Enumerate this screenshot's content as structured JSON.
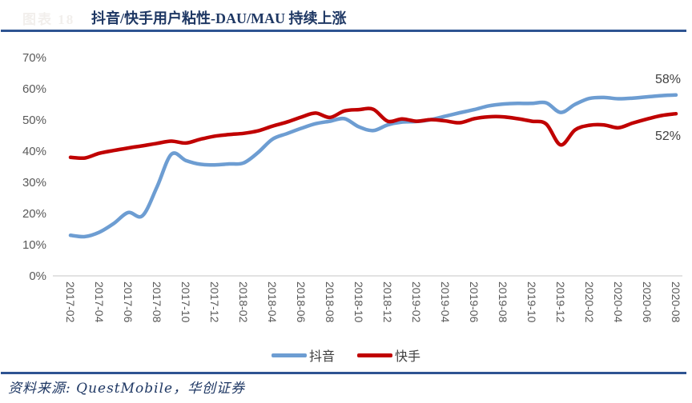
{
  "figure": {
    "tag": "图表 18",
    "title": "抖音/快手用户粘性-DAU/MAU 持续上涨",
    "source": "资料来源: QuestMobile，华创证券"
  },
  "colors": {
    "title_navy": "#1F3864",
    "rule_navy": "#2E5492",
    "figure_tag": "#F2EFEC",
    "axis_text": "#595959",
    "axis_line": "#D9D9D9",
    "data_label": "#404040",
    "legend_text": "#404040",
    "douyin_blue": "#6D9DD2",
    "kuaishou_red": "#C00000"
  },
  "chart_data": {
    "type": "line",
    "title": "抖音/快手用户粘性-DAU/MAU 持续上涨",
    "x": [
      "2017-02",
      "2017-03",
      "2017-04",
      "2017-05",
      "2017-06",
      "2017-07",
      "2017-08",
      "2017-09",
      "2017-10",
      "2017-11",
      "2017-12",
      "2018-01",
      "2018-02",
      "2018-03",
      "2018-04",
      "2018-05",
      "2018-06",
      "2018-07",
      "2018-08",
      "2018-09",
      "2018-10",
      "2018-11",
      "2018-12",
      "2019-01",
      "2019-02",
      "2019-03",
      "2019-04",
      "2019-05",
      "2019-06",
      "2019-07",
      "2019-08",
      "2019-09",
      "2019-10",
      "2019-11",
      "2019-12",
      "2020-01",
      "2020-02",
      "2020-03",
      "2020-04",
      "2020-05",
      "2020-06",
      "2020-07",
      "2020-08"
    ],
    "xtick_labels": [
      "2017-02",
      "2017-04",
      "2017-06",
      "2017-08",
      "2017-10",
      "2017-12",
      "2018-02",
      "2018-04",
      "2018-06",
      "2018-08",
      "2018-10",
      "2018-12",
      "2019-02",
      "2019-04",
      "2019-06",
      "2019-08",
      "2019-10",
      "2019-12",
      "2020-02",
      "2020-04",
      "2020-06",
      "2020-08"
    ],
    "series": [
      {
        "name": "抖音",
        "color": "#6D9DD2",
        "end_label": "58%",
        "values": [
          13,
          12.6,
          14,
          16.8,
          20.3,
          19.3,
          28.5,
          39,
          37,
          35.8,
          35.6,
          35.9,
          36.2,
          39.5,
          43.8,
          45.6,
          47.3,
          48.8,
          49.6,
          50.4,
          47.8,
          46.6,
          48.4,
          49.3,
          49.5,
          50.1,
          51.2,
          52.3,
          53.3,
          54.5,
          55.1,
          55.3,
          55.3,
          55.5,
          52.4,
          55,
          56.9,
          57.2,
          56.8,
          57,
          57.4,
          57.8,
          58
        ]
      },
      {
        "name": "快手",
        "color": "#C00000",
        "end_label": "52%",
        "values": [
          38,
          37.8,
          39.3,
          40.2,
          41,
          41.7,
          42.5,
          43.2,
          42.6,
          43.8,
          44.8,
          45.3,
          45.7,
          46.5,
          48,
          49.3,
          50.9,
          52.2,
          50.8,
          52.9,
          53.3,
          53.4,
          49.6,
          50.3,
          49.6,
          50.1,
          49.7,
          49.1,
          50.4,
          51,
          51,
          50.4,
          49.6,
          48.7,
          42,
          46.8,
          48.3,
          48.4,
          47.5,
          49,
          50.3,
          51.4,
          52
        ]
      }
    ],
    "ylim": [
      0,
      70
    ],
    "ytick_step": 10,
    "ytick_labels": [
      "0%",
      "10%",
      "20%",
      "30%",
      "40%",
      "50%",
      "60%",
      "70%"
    ],
    "unit": "percent",
    "grid": false,
    "legend_position": "bottom"
  }
}
